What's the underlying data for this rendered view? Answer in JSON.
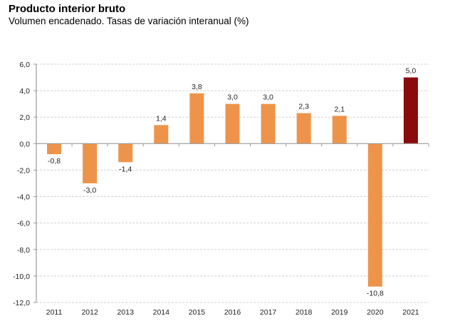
{
  "chart_data": {
    "type": "bar",
    "title": "Producto interior bruto",
    "subtitle": "Volumen encadenado. Tasas de variación interanual (%)",
    "xlabel": "",
    "ylabel": "",
    "categories": [
      "2011",
      "2012",
      "2013",
      "2014",
      "2015",
      "2016",
      "2017",
      "2018",
      "2019",
      "2020",
      "2021"
    ],
    "values": [
      -0.8,
      -3.0,
      -1.4,
      1.4,
      3.8,
      3.0,
      3.0,
      2.3,
      2.1,
      -10.8,
      5.0
    ],
    "value_labels": [
      "-0,8",
      "-3,0",
      "-1,4",
      "1,4",
      "3,8",
      "3,0",
      "3,0",
      "2,3",
      "2,1",
      "-10,8",
      "5,0"
    ],
    "ylim": [
      -12,
      6
    ],
    "yticks": [
      6,
      4,
      2,
      0,
      -2,
      -4,
      -6,
      -8,
      -10,
      -12
    ],
    "ytick_labels": [
      "6,0",
      "4,0",
      "2,0",
      "0,0",
      "-2,0",
      "-4,0",
      "-6,0",
      "-8,0",
      "-10,0",
      "-12,0"
    ],
    "grid": true,
    "legend": "none",
    "colors": {
      "default_bar": "#EE944A",
      "highlight_bar": "#8B0A0A",
      "highlight_category": "2021",
      "grid": "#D0D0D8",
      "axis": "#999999"
    }
  }
}
